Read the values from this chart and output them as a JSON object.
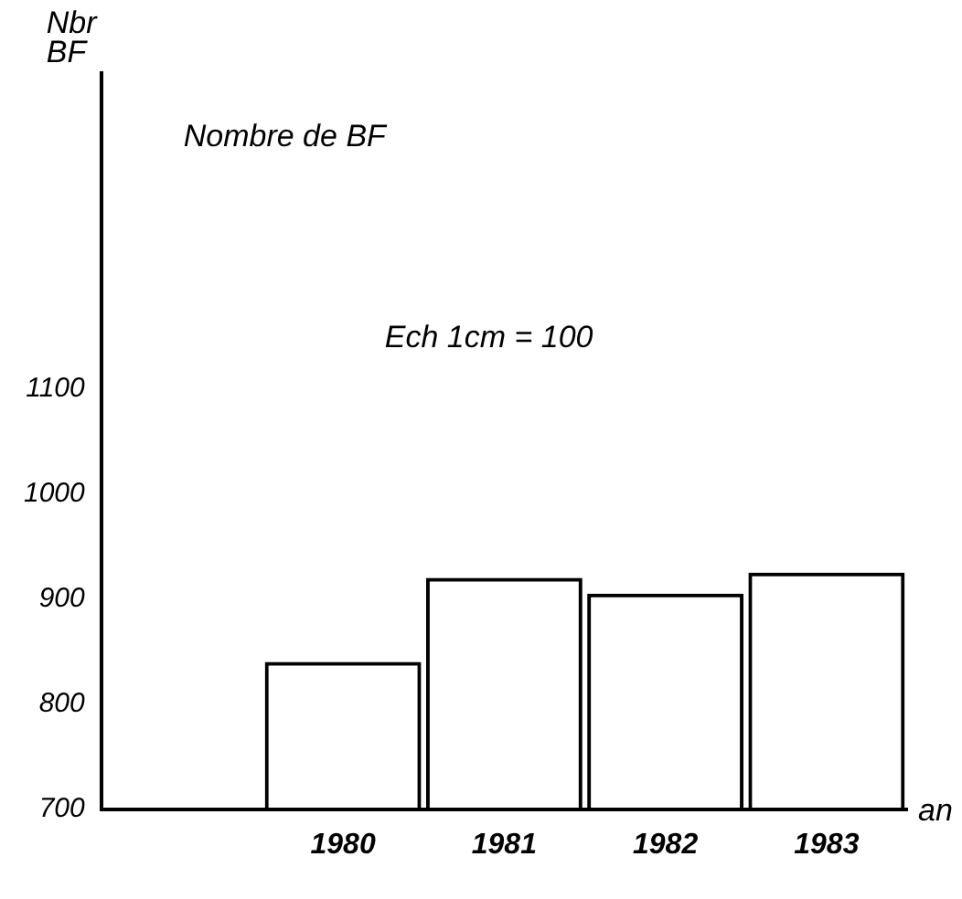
{
  "chart_data": {
    "type": "bar",
    "title": "Nombre de BF",
    "ylabel": "Nbr BF",
    "xlabel": "an",
    "categories": [
      null,
      "1980",
      "1981",
      "1982",
      "1983"
    ],
    "values": [
      null,
      840,
      920,
      905,
      925
    ],
    "color": "#000000",
    "ylim": [
      700,
      1400
    ],
    "yticks": [
      700,
      800,
      900,
      1000,
      1100
    ],
    "annotations": [
      "Ech 1cm = 100"
    ],
    "grid": false,
    "legend": false
  }
}
